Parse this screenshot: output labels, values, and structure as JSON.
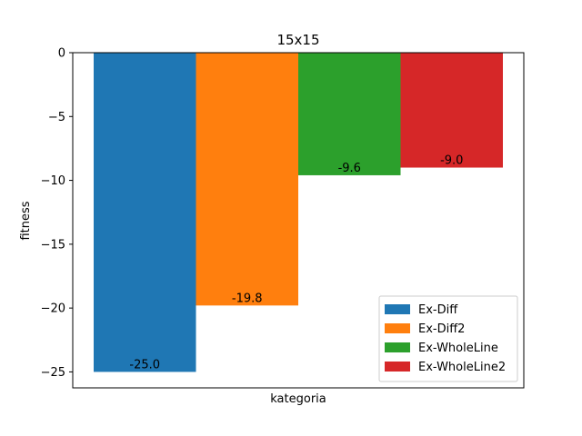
{
  "chart_data": {
    "type": "bar",
    "title": "15x15",
    "xlabel": "kategoria",
    "ylabel": "fitness",
    "ylim": [
      -26.25,
      0
    ],
    "yticks": [
      0,
      -5,
      -10,
      -15,
      -20,
      -25
    ],
    "ytick_labels": [
      "0",
      "−5",
      "−10",
      "−15",
      "−20",
      "−25"
    ],
    "grid": false,
    "legend_position": "lower-right",
    "series": [
      {
        "name": "Ex-Diff",
        "value": -25.0,
        "label": "-25.0",
        "color": "#1f77b4"
      },
      {
        "name": "Ex-Diff2",
        "value": -19.8,
        "label": "-19.8",
        "color": "#ff7f0e"
      },
      {
        "name": "Ex-WholeLine",
        "value": -9.6,
        "label": "-9.6",
        "color": "#2ca02c"
      },
      {
        "name": "Ex-WholeLine2",
        "value": -9.0,
        "label": "-9.0",
        "color": "#d62728"
      }
    ]
  }
}
